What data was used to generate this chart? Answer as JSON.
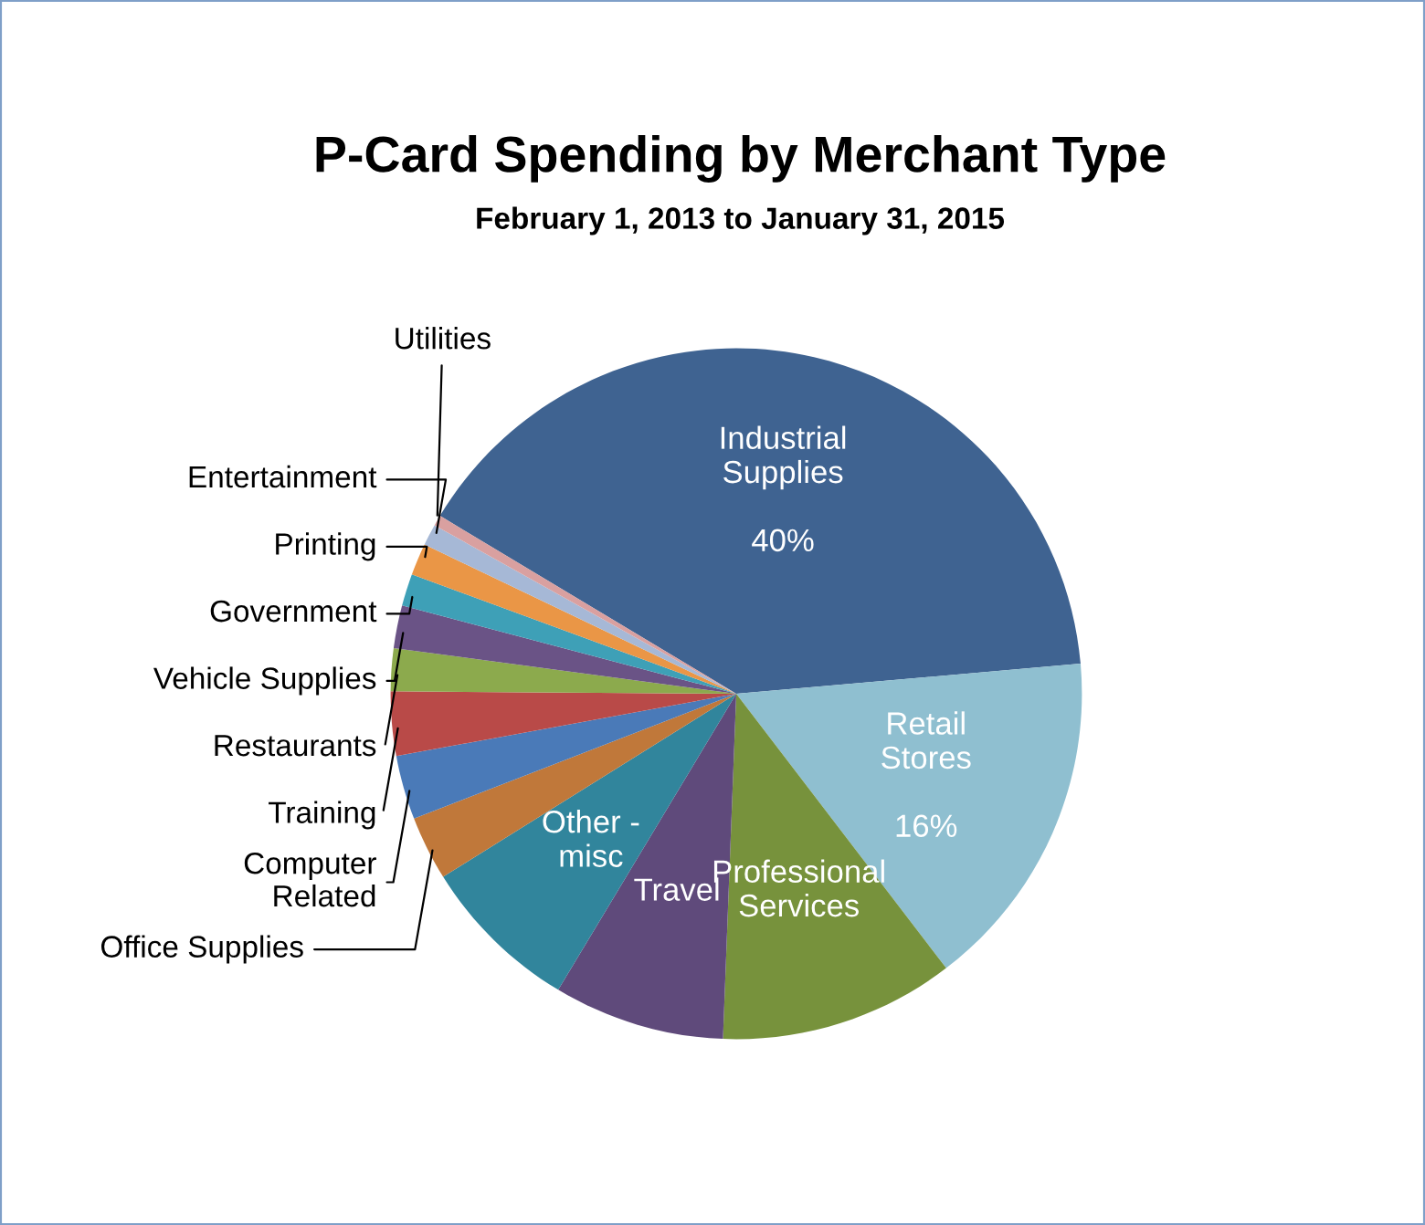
{
  "chart_data": {
    "type": "pie",
    "title": "P-Card Spending by Merchant Type",
    "subtitle": "February 1, 2013 to January 31, 2015",
    "categories": [
      "Industrial\nSupplies",
      "Retail\nStores",
      "Professional\nServices",
      "Travel",
      "Other -\nmisc",
      "Office Supplies",
      "Computer\nRelated",
      "Training",
      "Restaurants",
      "Vehicle Supplies",
      "Government",
      "Printing",
      "Entertainment",
      "Utilities"
    ],
    "values": [
      40,
      16,
      11,
      8,
      7.5,
      3,
      3,
      3,
      2,
      2,
      1.5,
      1.5,
      1,
      0.5
    ],
    "colors": [
      "#3f6391",
      "#8fbfd0",
      "#77923c",
      "#5f4a7b",
      "#31859c",
      "#c0783a",
      "#4a7ab8",
      "#b94a48",
      "#8caa4d",
      "#6a5386",
      "#3ea0b7",
      "#ea9646",
      "#a6b8d6",
      "#d9a0a0"
    ],
    "value_labels": [
      "40%",
      "16%",
      null,
      null,
      null,
      null,
      null,
      null,
      null,
      null,
      null,
      null,
      null,
      null
    ],
    "legend": false
  }
}
